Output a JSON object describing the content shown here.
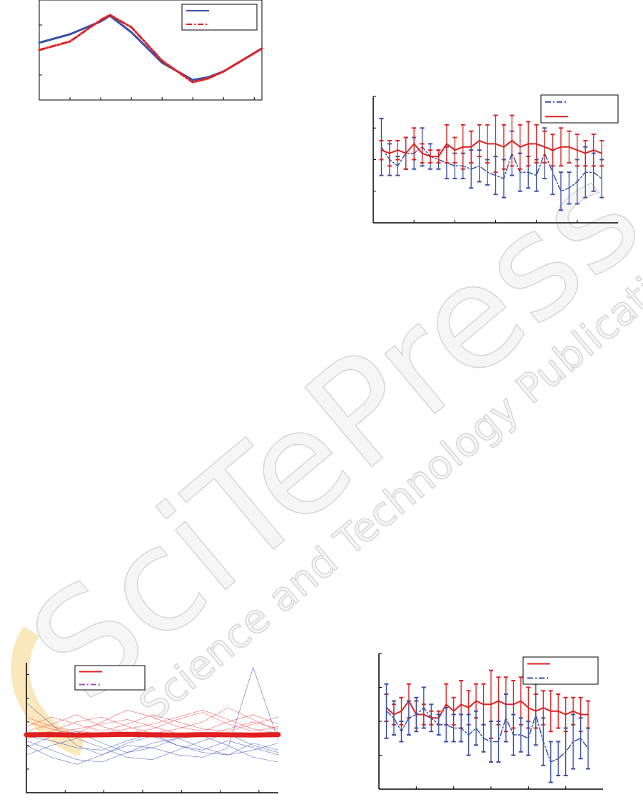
{
  "watermark": {
    "title": "SciTePress",
    "subtitle": "Science and Technology Publications"
  },
  "chart_data": [
    {
      "type": "line",
      "box": true,
      "xlim": [
        0,
        7.25
      ],
      "ylim": [
        0,
        4
      ],
      "xticks": [
        1,
        2,
        3,
        4,
        5,
        6,
        7
      ],
      "yticks": [
        1,
        3
      ],
      "x": [
        0,
        1,
        2,
        2.3,
        3,
        4,
        5,
        5.5,
        6,
        7.25
      ],
      "series": [
        {
          "color": "#3a4fa8",
          "linestyle": "solid",
          "linewidth": 3,
          "values": [
            2.29,
            2.63,
            3.14,
            3.37,
            2.71,
            1.49,
            0.8,
            0.91,
            1.14,
            2.06
          ]
        },
        {
          "color": "#e02020",
          "linestyle": "dash-dot",
          "linewidth": 3,
          "values": [
            2.0,
            2.34,
            3.2,
            3.4,
            2.91,
            1.57,
            0.71,
            0.86,
            1.14,
            2.06
          ]
        }
      ],
      "legend_entries": [
        {
          "color": "#3a4fa8",
          "linestyle": "solid"
        },
        {
          "color": "#e02020",
          "linestyle": "dash-dot"
        }
      ]
    },
    {
      "type": "errorbar",
      "box": false,
      "xlim": [
        0,
        30
      ],
      "ylim": [
        0,
        4
      ],
      "xticks": [
        5,
        10,
        15,
        20,
        25
      ],
      "yticks": [
        0,
        1,
        2,
        3,
        4
      ],
      "x": [
        1,
        2,
        3,
        4,
        5,
        6,
        7,
        8,
        9,
        10,
        11,
        12,
        13,
        14,
        15,
        16,
        17,
        18,
        19,
        20,
        21,
        22,
        23,
        24,
        25,
        26,
        27,
        28
      ],
      "series": [
        {
          "color": "#3a4fa8",
          "linestyle": "dash-dot",
          "linewidth": 1.5,
          "values": [
            2.4,
            2.0,
            1.8,
            2.2,
            2.2,
            2.4,
            2.1,
            2.0,
            1.9,
            1.8,
            1.8,
            1.7,
            1.8,
            1.6,
            1.5,
            1.4,
            2.2,
            1.6,
            1.6,
            1.5,
            2.2,
            1.6,
            1.0,
            1.1,
            1.3,
            1.6,
            1.6,
            1.4
          ],
          "errors": [
            0.9,
            0.5,
            0.3,
            0.5,
            0.5,
            0.6,
            0.4,
            0.3,
            0.5,
            0.4,
            0.4,
            0.6,
            0.5,
            0.4,
            0.6,
            0.6,
            0.7,
            0.6,
            0.5,
            0.5,
            0.8,
            0.7,
            0.6,
            0.5,
            0.7,
            0.8,
            0.6,
            0.6
          ]
        },
        {
          "color": "#e02020",
          "linestyle": "solid",
          "linewidth": 2,
          "values": [
            2.3,
            2.2,
            2.3,
            2.2,
            2.5,
            2.2,
            2.1,
            2.1,
            2.5,
            2.3,
            2.4,
            2.4,
            2.6,
            2.5,
            2.5,
            2.4,
            2.6,
            2.4,
            2.5,
            2.5,
            2.4,
            2.3,
            2.4,
            2.4,
            2.3,
            2.2,
            2.3,
            2.2
          ],
          "errors": [
            0.3,
            0.4,
            0.3,
            0.5,
            0.5,
            0.3,
            0.2,
            0.2,
            0.6,
            0.4,
            0.7,
            0.5,
            0.5,
            0.6,
            0.9,
            0.7,
            0.8,
            0.7,
            0.7,
            0.6,
            0.5,
            0.5,
            0.6,
            0.5,
            0.5,
            0.4,
            0.5,
            0.4
          ]
        }
      ],
      "legend_entries": [
        {
          "color": "#3a4fa8",
          "linestyle": "dash-dot"
        },
        {
          "color": "#e02020",
          "linestyle": "solid"
        }
      ]
    },
    {
      "type": "line",
      "box": false,
      "xlim": [
        0,
        6.5
      ],
      "ylim": [
        0,
        5.5
      ],
      "xticks": [
        1,
        2,
        3,
        4,
        5,
        6
      ],
      "yticks": [
        1,
        2,
        3,
        4,
        5
      ],
      "x": [
        0,
        0.65,
        1.3,
        1.95,
        2.6,
        3.25,
        3.9,
        4.55,
        5.2,
        5.85,
        6.5
      ],
      "series": [
        {
          "color": "#f04040",
          "linestyle": "solid",
          "linewidth": 0.6,
          "values": [
            2.6,
            2.9,
            3.3,
            2.8,
            2.5,
            2.7,
            3.1,
            3.4,
            2.9,
            2.6,
            2.8
          ]
        },
        {
          "color": "#f04040",
          "linestyle": "solid",
          "linewidth": 0.6,
          "values": [
            3.0,
            2.7,
            2.5,
            3.0,
            3.5,
            3.2,
            2.8,
            2.6,
            3.0,
            3.3,
            2.9
          ]
        },
        {
          "color": "#f04040",
          "linestyle": "solid",
          "linewidth": 0.6,
          "values": [
            2.4,
            2.6,
            3.0,
            3.2,
            2.8,
            2.5,
            2.7,
            3.0,
            3.6,
            3.1,
            2.6
          ]
        },
        {
          "color": "#f04040",
          "linestyle": "solid",
          "linewidth": 0.6,
          "values": [
            2.8,
            3.2,
            2.9,
            2.6,
            2.9,
            3.3,
            3.0,
            2.7,
            2.6,
            2.9,
            3.2
          ]
        },
        {
          "color": "#f04040",
          "linestyle": "solid",
          "linewidth": 0.6,
          "values": [
            2.3,
            2.5,
            2.7,
            2.9,
            3.1,
            2.8,
            2.5,
            2.4,
            2.7,
            3.0,
            2.7
          ]
        },
        {
          "color": "#f04040",
          "linestyle": "solid",
          "linewidth": 0.6,
          "values": [
            3.2,
            2.8,
            2.6,
            2.5,
            2.7,
            2.9,
            3.2,
            3.5,
            3.1,
            2.7,
            2.5
          ]
        },
        {
          "color": "#3a4fc8",
          "linestyle": "solid",
          "linewidth": 0.6,
          "values": [
            3.8,
            2.9,
            2.0,
            1.6,
            2.1,
            2.4,
            2.0,
            1.8,
            2.2,
            1.9,
            1.6
          ]
        },
        {
          "color": "#3a4fc8",
          "linestyle": "solid",
          "linewidth": 0.6,
          "values": [
            2.2,
            1.8,
            1.4,
            1.3,
            1.7,
            2.1,
            2.3,
            1.9,
            1.6,
            1.8,
            2.1
          ]
        },
        {
          "color": "#3a4fc8",
          "linestyle": "solid",
          "linewidth": 0.6,
          "values": [
            1.6,
            2.0,
            2.3,
            1.9,
            1.5,
            1.4,
            1.8,
            2.2,
            2.5,
            2.0,
            1.7
          ]
        },
        {
          "color": "#3a4fc8",
          "linestyle": "solid",
          "linewidth": 0.6,
          "values": [
            2.0,
            1.5,
            1.2,
            1.6,
            2.0,
            1.9,
            1.6,
            1.5,
            1.9,
            5.3,
            2.2
          ]
        },
        {
          "color": "#3a4fc8",
          "linestyle": "solid",
          "linewidth": 0.6,
          "values": [
            2.4,
            2.2,
            1.9,
            1.8,
            2.2,
            2.5,
            2.0,
            1.7,
            1.6,
            2.1,
            1.8
          ]
        },
        {
          "color": "#3a4fc8",
          "linestyle": "solid",
          "linewidth": 0.6,
          "values": [
            1.9,
            2.4,
            2.6,
            2.1,
            1.7,
            1.9,
            2.3,
            2.4,
            2.0,
            1.5,
            1.3
          ]
        },
        {
          "color": "#e02020",
          "linestyle": "solid",
          "linewidth": 7,
          "values": [
            2.45,
            2.46,
            2.44,
            2.45,
            2.47,
            2.45,
            2.44,
            2.46,
            2.45,
            2.44,
            2.46
          ]
        }
      ],
      "legend_entries": [
        {
          "color": "#e02020",
          "linestyle": "solid"
        },
        {
          "color": "#a050c0",
          "linestyle": "dash-dot"
        }
      ]
    },
    {
      "type": "errorbar",
      "box": false,
      "xlim": [
        0,
        30
      ],
      "ylim": [
        0,
        4
      ],
      "xticks": [
        5,
        10,
        15,
        20,
        25
      ],
      "yticks": [
        0,
        1,
        2,
        3,
        4
      ],
      "x": [
        1,
        2,
        3,
        4,
        5,
        6,
        7,
        8,
        9,
        10,
        11,
        12,
        13,
        14,
        15,
        16,
        17,
        18,
        19,
        20,
        21,
        22,
        23,
        24,
        25,
        26,
        27,
        28
      ],
      "series": [
        {
          "color": "#e02020",
          "linestyle": "solid",
          "linewidth": 2,
          "values": [
            2.4,
            2.2,
            2.3,
            2.6,
            2.2,
            2.2,
            2.1,
            2.1,
            2.5,
            2.3,
            2.5,
            2.4,
            2.6,
            2.5,
            2.5,
            2.6,
            2.5,
            2.5,
            2.6,
            2.4,
            2.3,
            2.4,
            2.3,
            2.3,
            2.2,
            2.3,
            2.2,
            2.2
          ],
          "errors": [
            0.4,
            0.3,
            0.4,
            0.5,
            0.4,
            0.3,
            0.2,
            0.2,
            0.6,
            0.4,
            0.7,
            0.5,
            0.5,
            0.6,
            1.0,
            0.7,
            0.8,
            0.7,
            0.7,
            0.6,
            0.5,
            0.5,
            0.6,
            0.5,
            0.5,
            0.4,
            0.5,
            0.4
          ]
        },
        {
          "color": "#3a4fa8",
          "linestyle": "dash-dot",
          "linewidth": 1.5,
          "values": [
            2.3,
            2.1,
            1.7,
            2.1,
            2.2,
            2.4,
            2.1,
            1.9,
            1.9,
            1.8,
            1.8,
            1.6,
            1.8,
            1.5,
            1.4,
            1.4,
            2.1,
            1.6,
            1.6,
            1.5,
            2.2,
            1.4,
            0.8,
            0.9,
            1.1,
            1.4,
            1.5,
            1.2
          ],
          "errors": [
            0.8,
            0.5,
            0.3,
            0.5,
            0.5,
            0.6,
            0.4,
            0.3,
            0.5,
            0.4,
            0.4,
            0.6,
            0.5,
            0.4,
            0.6,
            0.6,
            0.7,
            0.6,
            0.5,
            0.5,
            0.9,
            0.7,
            0.6,
            0.5,
            0.7,
            0.8,
            0.6,
            0.6
          ]
        }
      ],
      "legend_entries": [
        {
          "color": "#e02020",
          "linestyle": "solid"
        },
        {
          "color": "#3a4fa8",
          "linestyle": "dash-dot"
        }
      ]
    }
  ]
}
